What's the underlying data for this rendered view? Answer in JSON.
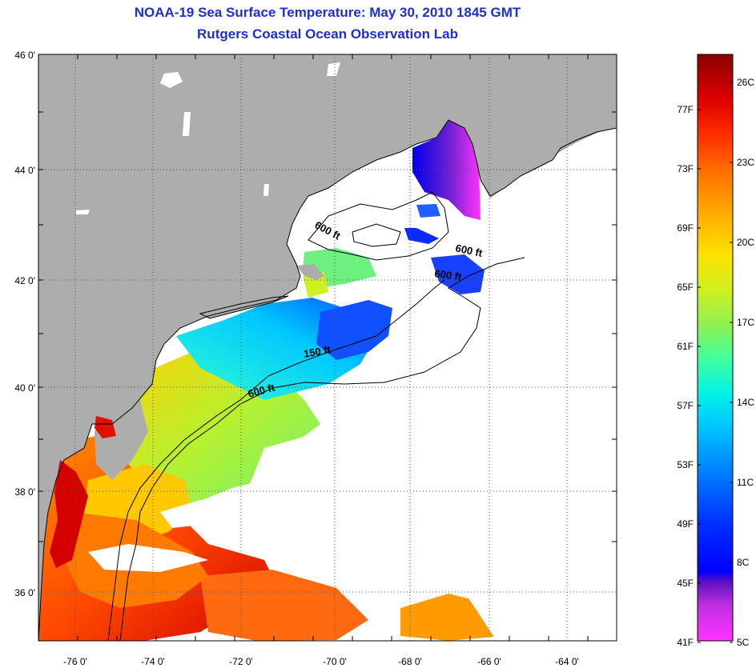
{
  "title": {
    "line1": "NOAA-19 Sea Surface Temperature:  May 30, 2010 1845 GMT",
    "line2": "Rutgers Coastal Ocean Observation Lab"
  },
  "map": {
    "lat_labels": [
      "46 0'",
      "44 0'",
      "42 0'",
      "40 0'",
      "38 0'",
      "36 0'"
    ],
    "lon_labels": [
      "-76 0'",
      "-74 0'",
      "-72 0'",
      "-70 0'",
      "-68 0'",
      "-66 0'",
      "-64 0'"
    ],
    "contour_labels": [
      {
        "id": "contour-label-600-gulf-maine",
        "text": "600 ft"
      },
      {
        "id": "contour-label-600-east-a",
        "text": "600 ft"
      },
      {
        "id": "contour-label-600-east-b",
        "text": "600 ft"
      },
      {
        "id": "contour-label-150",
        "text": "150 ft"
      },
      {
        "id": "contour-label-600-shelf",
        "text": "600 ft"
      }
    ],
    "colors": {
      "land": "#adadad",
      "cloud": "#ffffff",
      "grid": "#555555",
      "coastline": "#000000"
    }
  },
  "colorbar": {
    "celsius_labels": [
      "26C",
      "23C",
      "20C",
      "17C",
      "14C",
      "11C",
      "8C",
      "5C"
    ],
    "fahrenheit_labels": [
      "77F",
      "73F",
      "69F",
      "65F",
      "61F",
      "57F",
      "53F",
      "49F",
      "45F",
      "41F"
    ],
    "scale": [
      "#e6007f",
      "#ff33ff",
      "#8020c0",
      "#0000ff",
      "#0066ff",
      "#00d8ff",
      "#40ffa0",
      "#c8f020",
      "#ffd700",
      "#ff8c00",
      "#ff3300",
      "#cc0000",
      "#8b0000"
    ]
  }
}
